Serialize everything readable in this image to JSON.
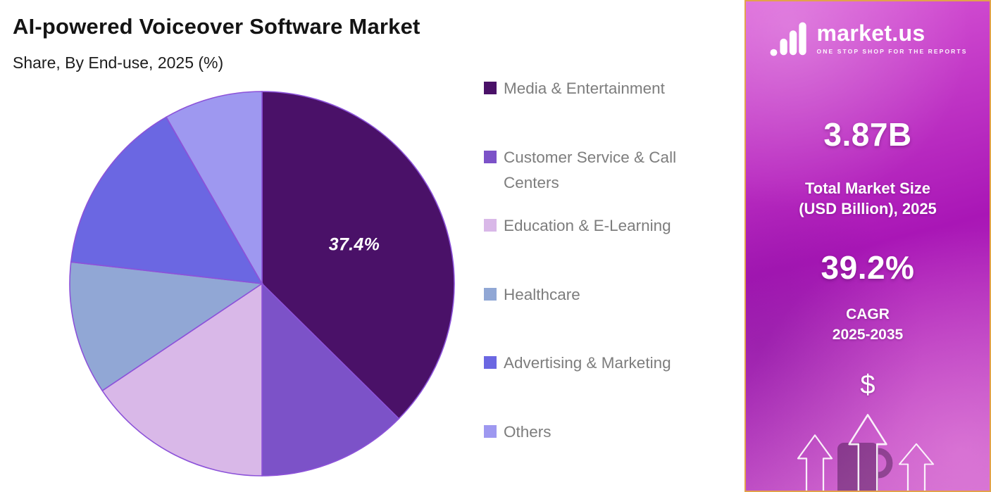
{
  "header": {
    "title": "AI-powered Voiceover Software Market",
    "subtitle": "Share, By End-use, 2025 (%)"
  },
  "chart_data": {
    "type": "pie",
    "title": "AI-powered Voiceover Software Market",
    "subtitle": "Share, By End-use, 2025 (%)",
    "unit": "%",
    "start_angle": "top",
    "direction": "clockwise",
    "legend_position": "right",
    "categories": [
      "Media & Entertainment",
      "Customer Service & Call Centers",
      "Education & E-Learning",
      "Healthcare",
      "Advertising & Marketing",
      "Others"
    ],
    "values": [
      37.4,
      12.6,
      15.6,
      11.2,
      14.9,
      8.3
    ],
    "colors": [
      "#4A1168",
      "#7C52C8",
      "#D9B8E8",
      "#91A7D5",
      "#6B67E2",
      "#9E98F0"
    ],
    "stroke_color": "#8C52D9",
    "slice_label": "37.4%",
    "slice_label_color": "#FFFFFF",
    "labeled_slice_category": "Media & Entertainment"
  },
  "sidebar": {
    "brand_name": "market.us",
    "brand_tagline": "ONE STOP SHOP FOR THE REPORTS",
    "market_size_value": "3.87B",
    "market_size_label_line1": "Total Market Size",
    "market_size_label_line2": "(USD Billion), 2025",
    "cagr_value": "39.2%",
    "cagr_label_line1": "CAGR",
    "cagr_label_line2": "2025-2035",
    "dollar_symbol": "$",
    "border_color": "#E2A24B",
    "bg_colors": [
      "#D957D6",
      "#A916B6",
      "#C961CB"
    ]
  }
}
